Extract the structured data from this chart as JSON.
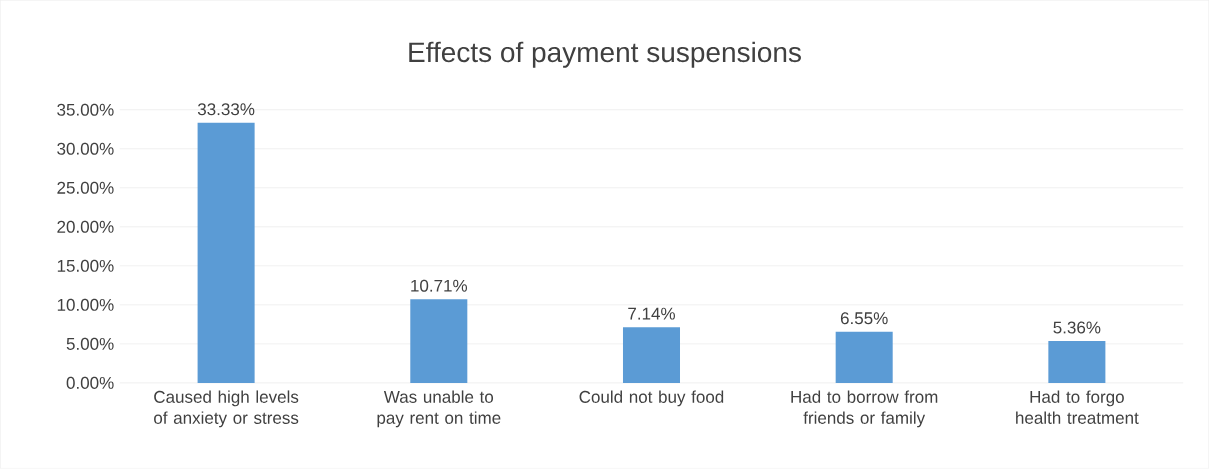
{
  "chart_data": {
    "type": "bar",
    "title": "Effects of payment suspensions",
    "categories": [
      "Caused high levels of anxiety or stress",
      "Was unable to pay rent on time",
      "Could not buy food",
      "Had to borrow from friends or family",
      "Had to forgo health treatment"
    ],
    "values": [
      33.33,
      10.71,
      7.14,
      6.55,
      5.36
    ],
    "value_labels": [
      "33.33%",
      "10.71%",
      "7.14%",
      "6.55%",
      "5.36%"
    ],
    "color": "#5b9bd5",
    "ylim": [
      0,
      35
    ],
    "yticks": [
      {
        "value": 0,
        "label": "0.00%"
      },
      {
        "value": 5,
        "label": "5.00%"
      },
      {
        "value": 10,
        "label": "10.00%"
      },
      {
        "value": 15,
        "label": "15.00%"
      },
      {
        "value": 20,
        "label": "20.00%"
      },
      {
        "value": 25,
        "label": "25.00%"
      },
      {
        "value": 30,
        "label": "30.00%"
      },
      {
        "value": 35,
        "label": "35.00%"
      }
    ],
    "grid": "y"
  }
}
